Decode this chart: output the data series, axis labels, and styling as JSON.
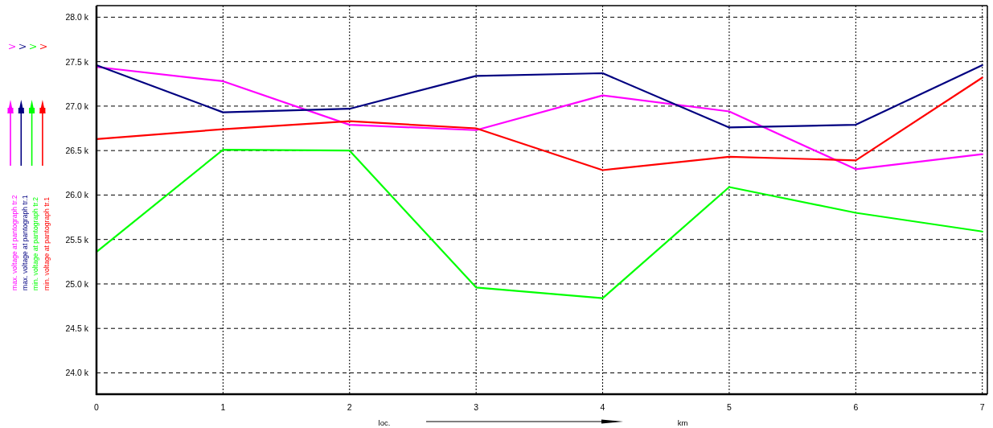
{
  "chart_data": {
    "type": "line",
    "xlabel": "loc.",
    "ylabel": "V",
    "annotations": [
      "km"
    ],
    "x": [
      0,
      1,
      2,
      3,
      4,
      5,
      6,
      7
    ],
    "xlim": [
      0,
      7.04
    ],
    "xticks": [
      0,
      1,
      2,
      3,
      4,
      5,
      6,
      7
    ],
    "ylim": [
      23760,
      28130
    ],
    "yticks": [
      {
        "value": 24000,
        "label": "24.0 k"
      },
      {
        "value": 24500,
        "label": "24.5 k"
      },
      {
        "value": 25000,
        "label": "25.0 k"
      },
      {
        "value": 25500,
        "label": "25.5 k"
      },
      {
        "value": 26000,
        "label": "26.0 k"
      },
      {
        "value": 26500,
        "label": "26.5 k"
      },
      {
        "value": 27000,
        "label": "27.0 k"
      },
      {
        "value": 27500,
        "label": "27.5 k"
      },
      {
        "value": 28000,
        "label": "28.0 k"
      }
    ],
    "grid": true,
    "legend": "left",
    "series": [
      {
        "name": "max. voltage at pantograph tr.2",
        "color": "#ff00ff",
        "values": [
          27440,
          27280,
          26790,
          26730,
          27120,
          26940,
          26290,
          26460
        ]
      },
      {
        "name": "max. voltage at pantograph tr.1",
        "color": "#000080",
        "values": [
          27460,
          26930,
          26970,
          27340,
          27370,
          26760,
          26790,
          27460
        ]
      },
      {
        "name": "min. voltage at pantograph tr.2",
        "color": "#00ff00",
        "values": [
          25360,
          26510,
          26500,
          24960,
          24840,
          26090,
          25800,
          25590
        ]
      },
      {
        "name": "min. voltage at pantograph tr.1",
        "color": "#ff0000",
        "values": [
          26630,
          26740,
          26830,
          26750,
          26280,
          26430,
          26390,
          27320
        ]
      }
    ]
  }
}
